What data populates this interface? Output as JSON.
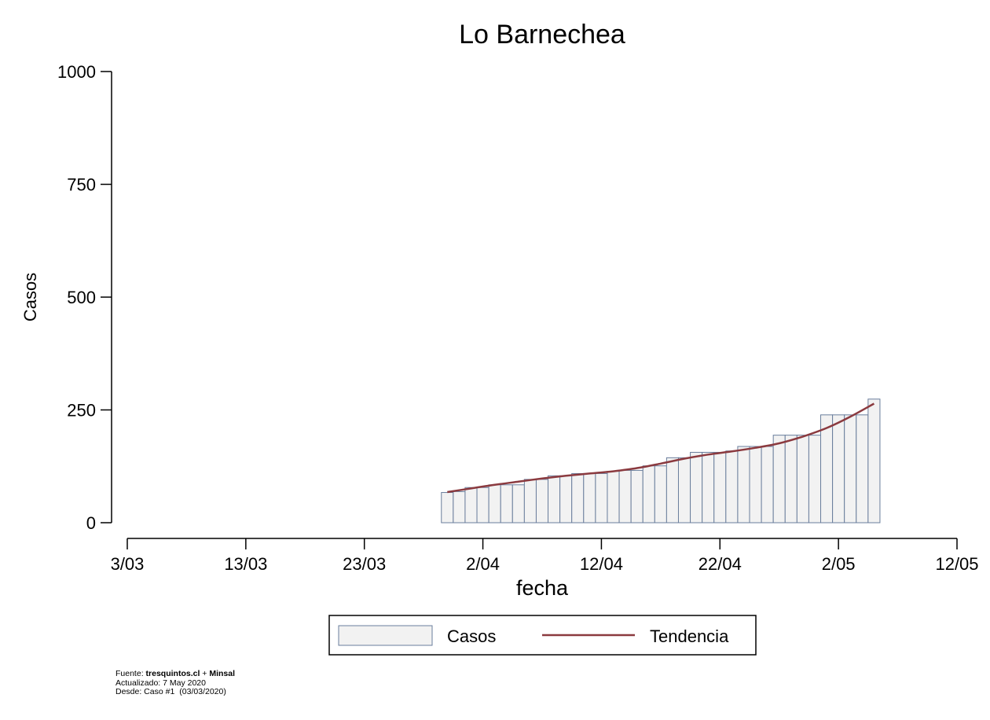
{
  "chart_data": {
    "type": "bar",
    "title": "Lo Barnechea",
    "xlabel": "fecha",
    "ylabel": "Casos",
    "ylim": [
      0,
      1000
    ],
    "yticks": [
      0,
      250,
      500,
      750,
      1000
    ],
    "xlim": [
      "2020-03-03",
      "2020-05-12"
    ],
    "xticks": [
      {
        "date": "2020-03-03",
        "label": "3/03"
      },
      {
        "date": "2020-03-13",
        "label": "13/03"
      },
      {
        "date": "2020-03-23",
        "label": "23/03"
      },
      {
        "date": "2020-04-02",
        "label": "2/04"
      },
      {
        "date": "2020-04-12",
        "label": "12/04"
      },
      {
        "date": "2020-04-22",
        "label": "22/04"
      },
      {
        "date": "2020-05-02",
        "label": "2/05"
      },
      {
        "date": "2020-05-12",
        "label": "12/05"
      }
    ],
    "series": [
      {
        "name": "Casos",
        "kind": "bar",
        "color": "#f2f2f2",
        "edge": "#6a7e9c",
        "x": [
          "2020-03-30",
          "2020-03-31",
          "2020-04-01",
          "2020-04-02",
          "2020-04-03",
          "2020-04-04",
          "2020-04-05",
          "2020-04-06",
          "2020-04-07",
          "2020-04-08",
          "2020-04-09",
          "2020-04-10",
          "2020-04-11",
          "2020-04-12",
          "2020-04-13",
          "2020-04-14",
          "2020-04-15",
          "2020-04-16",
          "2020-04-17",
          "2020-04-18",
          "2020-04-19",
          "2020-04-20",
          "2020-04-21",
          "2020-04-22",
          "2020-04-23",
          "2020-04-24",
          "2020-04-25",
          "2020-04-26",
          "2020-04-27",
          "2020-04-28",
          "2020-04-29",
          "2020-04-30",
          "2020-05-01",
          "2020-05-02",
          "2020-05-03",
          "2020-05-04",
          "2020-05-05"
        ],
        "values": [
          67,
          69,
          78,
          78,
          84,
          84,
          84,
          96,
          96,
          104,
          104,
          109,
          109,
          109,
          114,
          116,
          116,
          126,
          126,
          144,
          144,
          156,
          156,
          156,
          159,
          169,
          169,
          169,
          194,
          194,
          194,
          194,
          239,
          239,
          239,
          239,
          274
        ]
      },
      {
        "name": "Tendencia",
        "kind": "line",
        "color": "#8b3a3f",
        "x": [
          "2020-03-30",
          "2020-04-01",
          "2020-04-03",
          "2020-04-05",
          "2020-04-07",
          "2020-04-09",
          "2020-04-11",
          "2020-04-13",
          "2020-04-15",
          "2020-04-17",
          "2020-04-19",
          "2020-04-21",
          "2020-04-23",
          "2020-04-25",
          "2020-04-27",
          "2020-04-29",
          "2020-05-01",
          "2020-05-03",
          "2020-05-05"
        ],
        "values": [
          68,
          76,
          84,
          91,
          98,
          104,
          109,
          114,
          121,
          131,
          142,
          151,
          158,
          166,
          176,
          191,
          210,
          235,
          264
        ]
      }
    ],
    "legend": {
      "placement": "bottom",
      "entries": [
        "Casos",
        "Tendencia"
      ]
    },
    "grid": false
  },
  "footer": {
    "source_prefix": "Fuente: ",
    "source_site": "tresquintos.cl",
    "source_join": " + ",
    "source_org": "Minsal",
    "updated": "Actualizado: 7 May 2020",
    "since_label": "Desde: Caso #1",
    "since_date": "(03/03/2020)"
  }
}
